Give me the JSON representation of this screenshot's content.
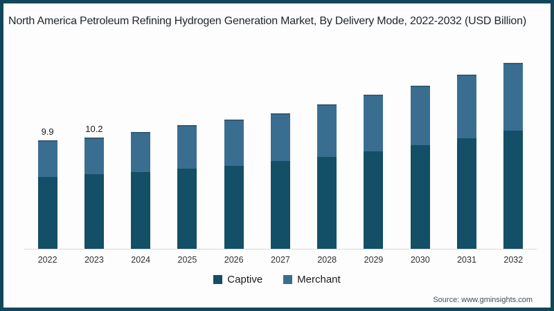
{
  "chart_data": {
    "type": "bar",
    "stacked": true,
    "title": "North America Petroleum Refining Hydrogen Generation Market, By Delivery Mode, 2022-2032 (USD Billion)",
    "categories": [
      "2022",
      "2023",
      "2024",
      "2025",
      "2026",
      "2027",
      "2028",
      "2029",
      "2030",
      "2031",
      "2032"
    ],
    "series": [
      {
        "name": "Captive",
        "color": "#134f66",
        "values": [
          6.6,
          6.8,
          7.0,
          7.3,
          7.6,
          8.0,
          8.4,
          8.9,
          9.5,
          10.1,
          10.8
        ]
      },
      {
        "name": "Merchant",
        "color": "#3a6e91",
        "values": [
          3.3,
          3.4,
          3.7,
          4.0,
          4.2,
          4.4,
          4.8,
          5.2,
          5.4,
          5.8,
          6.2
        ]
      }
    ],
    "totals": [
      9.9,
      10.2,
      10.7,
      11.3,
      11.8,
      12.4,
      13.2,
      14.1,
      14.9,
      15.9,
      17.0
    ],
    "bar_labels": [
      "9.9",
      "10.2",
      "",
      "",
      "",
      "",
      "",
      "",
      "",
      "",
      ""
    ],
    "xlabel": "",
    "ylabel": "",
    "ylim": [
      0,
      18
    ],
    "grid": false,
    "legend_position": "bottom"
  },
  "source": {
    "text": "Source: www.gminsights.com"
  },
  "colors": {
    "frame": "#11475a",
    "captive": "#134f66",
    "merchant": "#3a6e91",
    "baseline": "#d9d9d9"
  }
}
